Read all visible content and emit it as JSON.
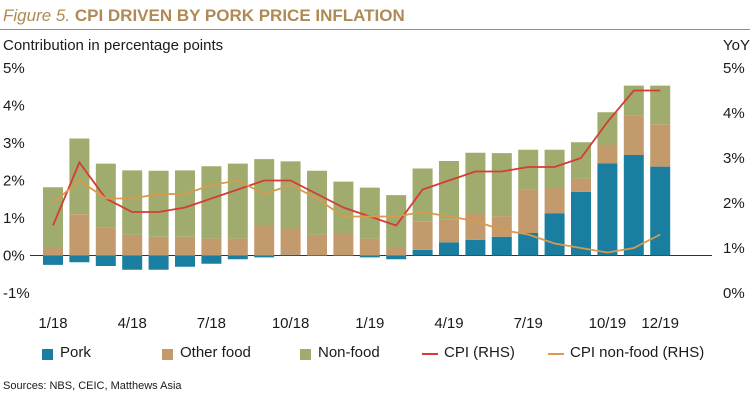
{
  "figure": {
    "label": "Figure 5.",
    "title": "CPI DRIVEN BY PORK PRICE INFLATION"
  },
  "axes": {
    "left_title": "Contribution in percentage points",
    "right_title": "YoY"
  },
  "source": "Sources: NBS, CEIC, Matthews Asia",
  "colors": {
    "title": "#b08a55",
    "pork": "#1a7ea0",
    "other_food": "#c39a6b",
    "non_food": "#9fac6e",
    "cpi": "#d63b35",
    "cpi_non_food": "#d89a4c"
  },
  "chart_data": {
    "type": "bar",
    "stacked": true,
    "x": [
      "1/18",
      "2/18",
      "3/18",
      "4/18",
      "5/18",
      "6/18",
      "7/18",
      "8/18",
      "9/18",
      "10/18",
      "11/18",
      "12/18",
      "1/19",
      "2/19",
      "3/19",
      "4/19",
      "5/19",
      "6/19",
      "7/19",
      "8/19",
      "9/19",
      "10/19",
      "11/19",
      "12/19"
    ],
    "x_tick_labels": [
      "1/18",
      "4/18",
      "7/18",
      "10/18",
      "1/19",
      "4/19",
      "7/19",
      "10/19",
      "12/19"
    ],
    "x_tick_index": [
      0,
      3,
      6,
      9,
      12,
      15,
      18,
      21,
      23
    ],
    "left_axis": {
      "ylim": [
        -1,
        5
      ],
      "ticks": [
        "-1%",
        "0%",
        "1%",
        "2%",
        "3%",
        "4%",
        "5%"
      ]
    },
    "right_axis": {
      "ylim": [
        0,
        5
      ],
      "ticks": [
        "0%",
        "1%",
        "2%",
        "3%",
        "4%",
        "5%"
      ]
    },
    "series": [
      {
        "name": "Pork",
        "type": "bar",
        "axis": "left",
        "values": [
          -0.25,
          -0.18,
          -0.28,
          -0.38,
          -0.38,
          -0.3,
          -0.22,
          -0.1,
          -0.05,
          0.02,
          0.0,
          0.0,
          -0.05,
          -0.1,
          0.15,
          0.35,
          0.42,
          0.5,
          0.6,
          1.12,
          1.7,
          2.46,
          2.68,
          2.37
        ]
      },
      {
        "name": "Other food",
        "type": "bar",
        "axis": "left",
        "values": [
          0.2,
          1.1,
          0.75,
          0.55,
          0.5,
          0.5,
          0.45,
          0.45,
          0.8,
          0.7,
          0.55,
          0.6,
          0.45,
          0.2,
          0.75,
          0.6,
          0.7,
          0.55,
          1.15,
          0.68,
          0.35,
          0.5,
          1.05,
          1.13
        ]
      },
      {
        "name": "Non-food",
        "type": "bar",
        "axis": "left",
        "values": [
          1.62,
          2.02,
          1.7,
          1.72,
          1.76,
          1.77,
          1.93,
          2.0,
          1.77,
          1.79,
          1.71,
          1.37,
          1.36,
          1.41,
          1.42,
          1.57,
          1.62,
          1.68,
          1.07,
          1.02,
          0.97,
          0.86,
          0.8,
          1.03
        ]
      },
      {
        "name": "CPI (RHS)",
        "type": "line",
        "axis": "right",
        "values": [
          1.5,
          2.9,
          2.1,
          1.8,
          1.8,
          1.9,
          2.1,
          2.3,
          2.5,
          2.5,
          2.2,
          1.9,
          1.7,
          1.5,
          2.3,
          2.5,
          2.7,
          2.7,
          2.8,
          2.8,
          3.0,
          3.8,
          4.5,
          4.5
        ]
      },
      {
        "name": "CPI non-food (RHS)",
        "type": "line",
        "axis": "right",
        "values": [
          2.0,
          2.5,
          2.1,
          2.1,
          2.2,
          2.2,
          2.4,
          2.5,
          2.2,
          2.4,
          2.1,
          1.7,
          1.7,
          1.7,
          1.8,
          1.7,
          1.6,
          1.4,
          1.3,
          1.1,
          1.0,
          0.9,
          1.0,
          1.3
        ]
      }
    ],
    "grid": false,
    "legend_position": "bottom"
  }
}
